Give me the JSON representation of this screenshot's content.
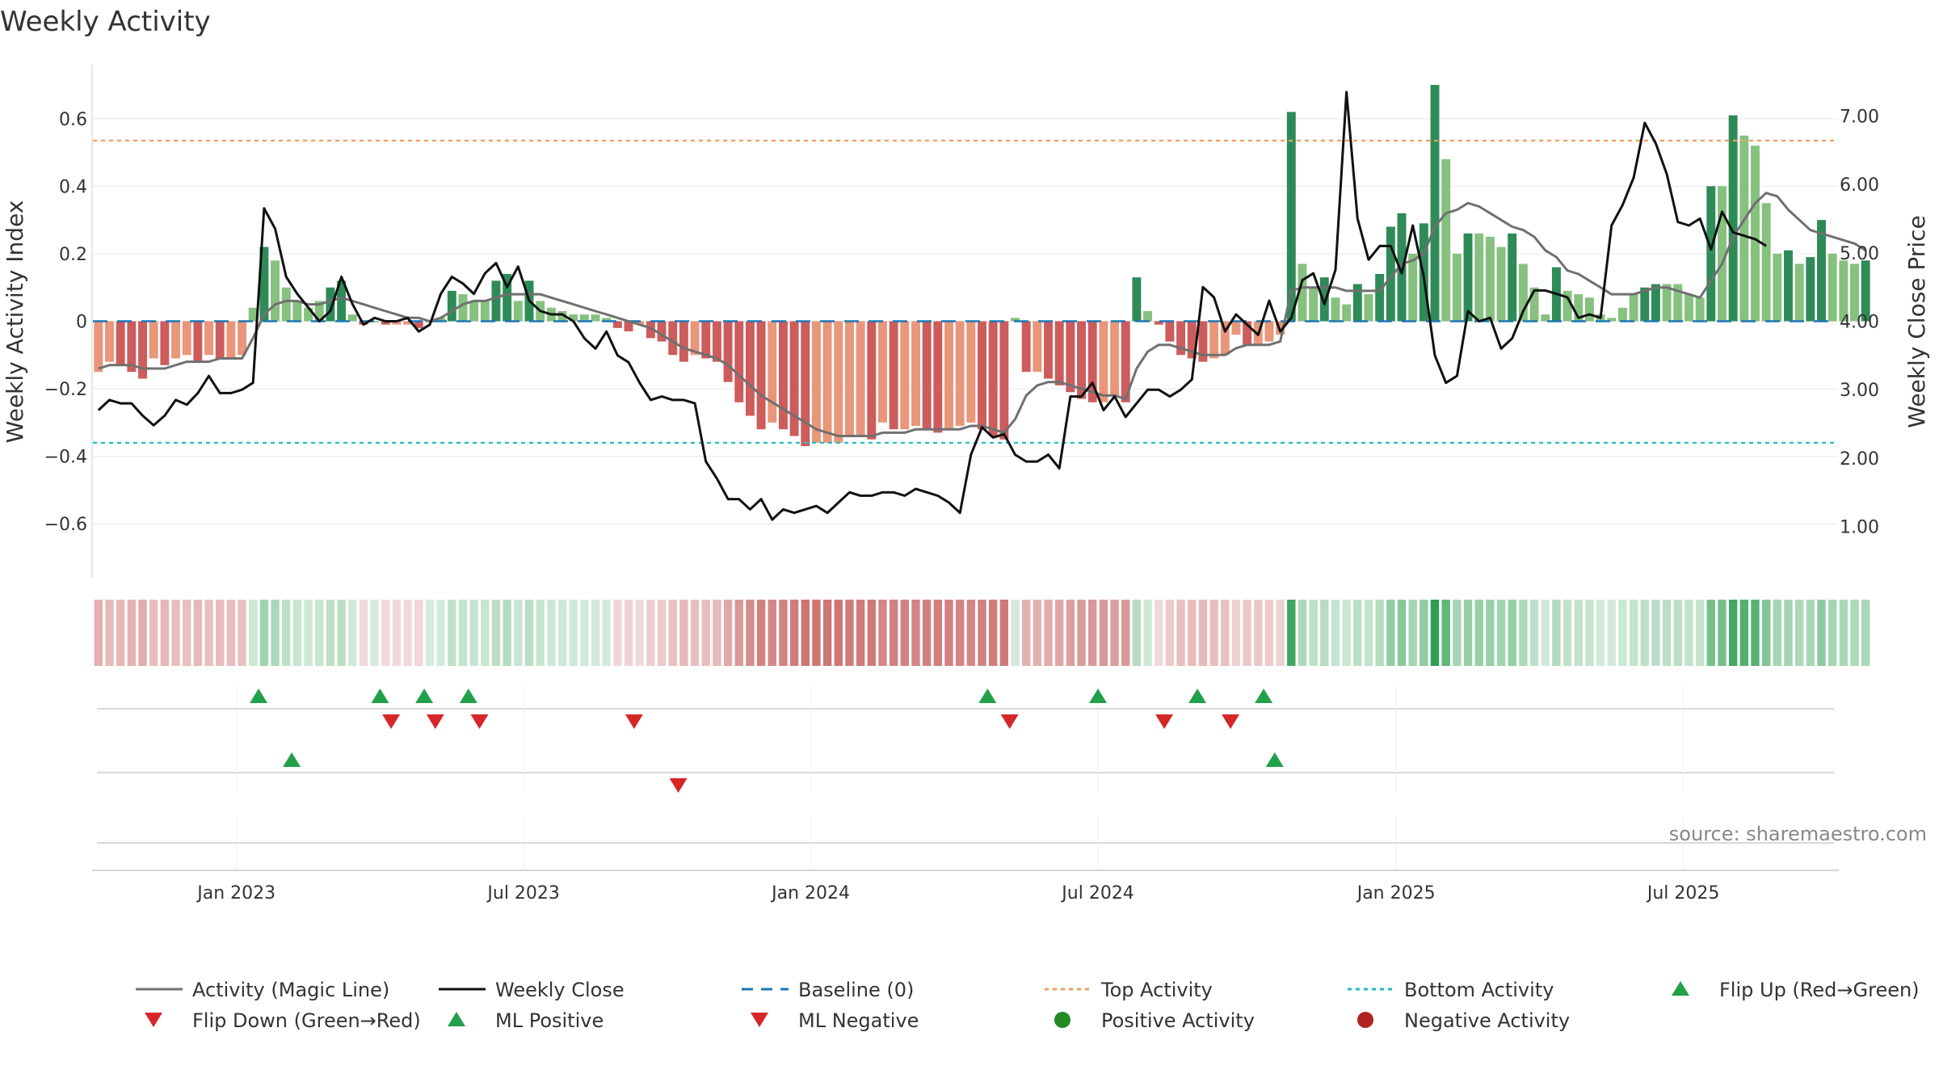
{
  "chart_data": {
    "type": "bar",
    "title": "Weekly Activity",
    "ylabel_left": "Weekly Activity Index",
    "ylabel_right": "Weekly Close Price",
    "source": "source: sharemaestro.com",
    "x_start": "2022-10-03",
    "x_end": "2025-10-13",
    "x_ticks": [
      {
        "label": "Jan 2023",
        "date": "2023-01-02"
      },
      {
        "label": "Jul 2023",
        "date": "2023-07-03"
      },
      {
        "label": "Jan 2024",
        "date": "2024-01-01"
      },
      {
        "label": "Jul 2024",
        "date": "2024-07-01"
      },
      {
        "label": "Jan 2025",
        "date": "2025-01-06"
      },
      {
        "label": "Jul 2025",
        "date": "2025-07-07"
      }
    ],
    "y_left": {
      "min": -0.76,
      "max": 0.76,
      "ticks": [
        0.6,
        0.4,
        0.2,
        0,
        -0.2,
        -0.4,
        -0.6
      ],
      "tick_labels": [
        "0.6",
        "0.4",
        "0.2",
        "0",
        "−0.2",
        "−0.4",
        "−0.6"
      ]
    },
    "y_right": {
      "min": 0.25,
      "max": 7.75,
      "ticks": [
        7,
        6,
        5,
        4,
        3,
        2,
        1
      ],
      "tick_labels": [
        "7.00",
        "6.00",
        "5.00",
        "4.00",
        "3.00",
        "2.00",
        "1.00"
      ]
    },
    "top_activity": 0.535,
    "bottom_activity": -0.36,
    "baseline": 0,
    "activity": [
      -0.15,
      -0.12,
      -0.13,
      -0.15,
      -0.17,
      -0.11,
      -0.13,
      -0.11,
      -0.1,
      -0.12,
      -0.1,
      -0.11,
      -0.11,
      -0.1,
      0.04,
      0.22,
      0.18,
      0.1,
      0.06,
      0.04,
      0.06,
      0.1,
      0.12,
      0.02,
      -0.01,
      0.0,
      -0.01,
      -0.01,
      -0.01,
      -0.02,
      0.0,
      0.01,
      0.09,
      0.08,
      0.06,
      0.06,
      0.12,
      0.14,
      0.06,
      0.12,
      0.06,
      0.04,
      0.03,
      0.02,
      0.02,
      0.02,
      0.01,
      -0.02,
      -0.03,
      -0.01,
      -0.05,
      -0.06,
      -0.1,
      -0.12,
      -0.1,
      -0.11,
      -0.12,
      -0.18,
      -0.24,
      -0.28,
      -0.32,
      -0.3,
      -0.32,
      -0.34,
      -0.37,
      -0.36,
      -0.36,
      -0.36,
      -0.34,
      -0.34,
      -0.35,
      -0.3,
      -0.32,
      -0.32,
      -0.31,
      -0.32,
      -0.33,
      -0.32,
      -0.31,
      -0.3,
      -0.32,
      -0.34,
      -0.35,
      0.01,
      -0.15,
      -0.15,
      -0.17,
      -0.19,
      -0.21,
      -0.23,
      -0.24,
      -0.24,
      -0.22,
      -0.24,
      0.13,
      0.03,
      -0.01,
      -0.06,
      -0.1,
      -0.11,
      -0.12,
      -0.11,
      -0.1,
      -0.04,
      -0.07,
      -0.07,
      -0.06,
      -0.04,
      0.62,
      0.17,
      0.1,
      0.13,
      0.07,
      0.05,
      0.11,
      0.08,
      0.14,
      0.28,
      0.32,
      0.2,
      0.29,
      0.7,
      0.48,
      0.2,
      0.26,
      0.26,
      0.25,
      0.22,
      0.26,
      0.17,
      0.1,
      0.02,
      0.16,
      0.09,
      0.08,
      0.07,
      0.02,
      0.01,
      0.04,
      0.08,
      0.1,
      0.11,
      0.11,
      0.11,
      0.08,
      0.07,
      0.4,
      0.4,
      0.61,
      0.55,
      0.52,
      0.35,
      0.2,
      0.21,
      0.17,
      0.19,
      0.3,
      0.2,
      0.18,
      0.17,
      0.18
    ],
    "magic_line": [
      -0.14,
      -0.13,
      -0.13,
      -0.13,
      -0.14,
      -0.14,
      -0.14,
      -0.13,
      -0.12,
      -0.12,
      -0.12,
      -0.11,
      -0.11,
      -0.11,
      -0.05,
      0.02,
      0.05,
      0.06,
      0.06,
      0.05,
      0.05,
      0.06,
      0.07,
      0.06,
      0.05,
      0.04,
      0.03,
      0.02,
      0.01,
      0.01,
      0.0,
      0.01,
      0.03,
      0.05,
      0.06,
      0.06,
      0.07,
      0.08,
      0.08,
      0.08,
      0.08,
      0.07,
      0.06,
      0.05,
      0.04,
      0.03,
      0.02,
      0.01,
      0.0,
      -0.01,
      -0.02,
      -0.04,
      -0.06,
      -0.08,
      -0.09,
      -0.1,
      -0.11,
      -0.13,
      -0.16,
      -0.19,
      -0.22,
      -0.24,
      -0.26,
      -0.28,
      -0.3,
      -0.32,
      -0.33,
      -0.34,
      -0.34,
      -0.34,
      -0.34,
      -0.33,
      -0.33,
      -0.33,
      -0.32,
      -0.32,
      -0.32,
      -0.32,
      -0.32,
      -0.31,
      -0.31,
      -0.32,
      -0.33,
      -0.29,
      -0.22,
      -0.19,
      -0.18,
      -0.18,
      -0.19,
      -0.2,
      -0.21,
      -0.22,
      -0.22,
      -0.23,
      -0.14,
      -0.09,
      -0.07,
      -0.07,
      -0.08,
      -0.09,
      -0.1,
      -0.1,
      -0.1,
      -0.08,
      -0.07,
      -0.07,
      -0.07,
      -0.06,
      0.09,
      0.1,
      0.1,
      0.1,
      0.1,
      0.09,
      0.09,
      0.09,
      0.09,
      0.13,
      0.17,
      0.18,
      0.2,
      0.28,
      0.32,
      0.33,
      0.35,
      0.34,
      0.32,
      0.3,
      0.28,
      0.27,
      0.25,
      0.21,
      0.19,
      0.15,
      0.14,
      0.12,
      0.1,
      0.08,
      0.08,
      0.08,
      0.09,
      0.1,
      0.1,
      0.09,
      0.08,
      0.07,
      0.12,
      0.17,
      0.25,
      0.3,
      0.35,
      0.38,
      0.37,
      0.33,
      0.3,
      0.27,
      0.26,
      0.25,
      0.24,
      0.23,
      0.21
    ],
    "weekly_close": [
      2.7,
      2.85,
      2.8,
      2.8,
      2.62,
      2.48,
      2.62,
      2.85,
      2.78,
      2.95,
      3.2,
      2.95,
      2.95,
      3.0,
      3.1,
      5.65,
      5.35,
      4.65,
      4.4,
      4.2,
      4.0,
      4.15,
      4.65,
      4.25,
      3.95,
      4.05,
      4.0,
      4.0,
      4.05,
      3.85,
      3.95,
      4.4,
      4.65,
      4.55,
      4.4,
      4.7,
      4.85,
      4.5,
      4.8,
      4.3,
      4.15,
      4.1,
      4.1,
      4.0,
      3.75,
      3.6,
      3.85,
      3.5,
      3.4,
      3.1,
      2.85,
      2.9,
      2.85,
      2.85,
      2.8,
      1.95,
      1.7,
      1.4,
      1.4,
      1.25,
      1.4,
      1.1,
      1.25,
      1.2,
      1.25,
      1.3,
      1.2,
      1.35,
      1.5,
      1.45,
      1.45,
      1.5,
      1.5,
      1.45,
      1.55,
      1.5,
      1.45,
      1.35,
      1.2,
      2.05,
      2.45,
      2.3,
      2.35,
      2.05,
      1.95,
      1.95,
      2.05,
      1.85,
      2.9,
      2.9,
      3.1,
      2.7,
      2.9,
      2.6,
      2.8,
      3.0,
      3.0,
      2.9,
      3.0,
      3.15,
      4.5,
      4.35,
      3.85,
      4.1,
      3.95,
      3.8,
      4.3,
      3.85,
      4.05,
      4.6,
      4.7,
      4.25,
      4.75,
      7.35,
      5.5,
      4.9,
      5.1,
      5.1,
      4.7,
      5.4,
      4.65,
      3.5,
      3.1,
      3.2,
      4.15,
      4.0,
      4.05,
      3.6,
      3.75,
      4.15,
      4.45,
      4.45,
      4.4,
      4.35,
      4.05,
      4.1,
      4.05,
      5.4,
      5.7,
      6.1,
      6.9,
      6.6,
      6.15,
      5.45,
      5.4,
      5.5,
      5.05,
      5.6,
      5.3,
      5.25,
      5.2,
      5.1
    ],
    "flip_up_dates": [
      "2023-01-16",
      "2023-04-03",
      "2023-05-01",
      "2023-05-29",
      "2024-04-22",
      "2024-07-01",
      "2024-09-02",
      "2024-10-14"
    ],
    "flip_down_dates": [
      "2023-04-10",
      "2023-05-08",
      "2023-06-05",
      "2023-09-11",
      "2024-05-06",
      "2024-08-12",
      "2024-09-23"
    ],
    "ml_positive_dates": [
      "2023-02-06",
      "2024-10-21"
    ],
    "ml_negative_dates": [
      "2023-10-09"
    ],
    "colors": {
      "pos_strong": "#2e8b57",
      "pos_light": "#86c17f",
      "neg_strong": "#cd5c5c",
      "neg_light": "#e9967a",
      "magic_line": "#707070",
      "weekly_close": "#111111",
      "baseline": "#1f77b4",
      "top": "#f0a060",
      "bottom": "#20c0c0",
      "flip_up": "#22a04a",
      "flip_down": "#d62728",
      "pos_activity": "#228b22",
      "neg_activity": "#b22222"
    },
    "legend": [
      {
        "label": "Activity (Magic Line)",
        "icon": "solid-line-gray"
      },
      {
        "label": "Weekly Close",
        "icon": "solid-line-black"
      },
      {
        "label": "Baseline (0)",
        "icon": "dashed-line-blue"
      },
      {
        "label": "Top Activity",
        "icon": "dotted-line-orange"
      },
      {
        "label": "Bottom Activity",
        "icon": "dotted-line-cyan"
      },
      {
        "label": "Flip Up (Red→Green)",
        "icon": "triangle-up-green"
      },
      {
        "label": "Flip Down (Green→Red)",
        "icon": "triangle-down-red"
      },
      {
        "label": "ML Positive",
        "icon": "triangle-up-green"
      },
      {
        "label": "ML Negative",
        "icon": "triangle-down-red"
      },
      {
        "label": "Positive Activity",
        "icon": "circle-green"
      },
      {
        "label": "Negative Activity",
        "icon": "circle-red"
      }
    ]
  }
}
